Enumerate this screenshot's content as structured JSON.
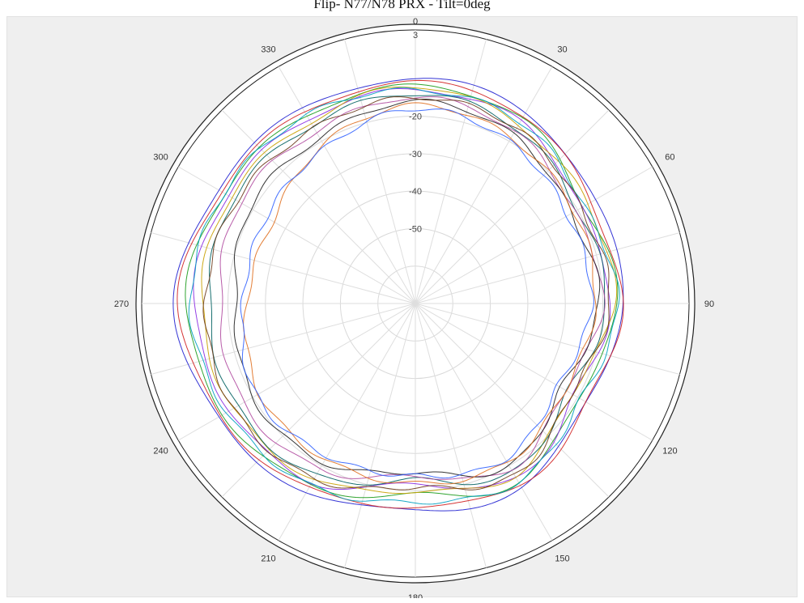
{
  "chart_data": {
    "type": "line",
    "subtype": "polar",
    "title": "Flip- N77/N78 PRX - Tilt=0deg",
    "xlabel": "",
    "ylabel": "",
    "angle_ticks": [
      "0",
      "30",
      "60",
      "90",
      "120",
      "150",
      "180",
      "210",
      "240",
      "270",
      "300",
      "330"
    ],
    "angle_tick_values": [
      0,
      30,
      60,
      90,
      120,
      150,
      180,
      210,
      240,
      270,
      300,
      330
    ],
    "radial_ticks": [
      "3",
      "-20",
      "-30",
      "-40",
      "-50"
    ],
    "radial_tick_values": [
      3,
      -20,
      -30,
      -40,
      -50
    ],
    "rlim": [
      -70,
      3
    ],
    "grid": true,
    "legend": "none",
    "colors": [
      "#1f1fd0",
      "#d02020",
      "#1a9a1a",
      "#8a2be2",
      "#c8a000",
      "#006060",
      "#b04aa0",
      "#202020",
      "#e07020",
      "#00a0c0",
      "#6b3a1a",
      "#3060ff"
    ],
    "series": [
      {
        "theta": [
          0,
          30,
          60,
          90,
          120,
          150,
          180,
          210,
          240,
          270,
          300,
          330
        ],
        "r": [
          -10,
          -11,
          -15,
          -14,
          -18,
          -13,
          -15,
          -12,
          -9,
          -6,
          -9,
          -10
        ]
      },
      {
        "theta": [
          0,
          30,
          60,
          90,
          120,
          150,
          180,
          210,
          240,
          270,
          300,
          330
        ],
        "r": [
          -11,
          -12,
          -16,
          -15,
          -17,
          -14,
          -16,
          -13,
          -10,
          -7,
          -10,
          -11
        ]
      },
      {
        "theta": [
          0,
          30,
          60,
          90,
          120,
          150,
          180,
          210,
          240,
          270,
          300,
          330
        ],
        "r": [
          -12,
          -13,
          -18,
          -16,
          -20,
          -15,
          -19,
          -14,
          -11,
          -9,
          -11,
          -12
        ]
      },
      {
        "theta": [
          0,
          30,
          60,
          90,
          120,
          150,
          180,
          210,
          240,
          270,
          300,
          330
        ],
        "r": [
          -13,
          -14,
          -19,
          -18,
          -21,
          -16,
          -22,
          -15,
          -13,
          -11,
          -12,
          -13
        ]
      },
      {
        "theta": [
          0,
          30,
          60,
          90,
          120,
          150,
          180,
          210,
          240,
          270,
          300,
          330
        ],
        "r": [
          -12,
          -15,
          -17,
          -17,
          -22,
          -17,
          -20,
          -16,
          -14,
          -13,
          -13,
          -14
        ]
      },
      {
        "theta": [
          0,
          30,
          60,
          90,
          120,
          150,
          180,
          210,
          240,
          270,
          300,
          330
        ],
        "r": [
          -14,
          -16,
          -20,
          -19,
          -23,
          -18,
          -23,
          -17,
          -15,
          -15,
          -14,
          -15
        ]
      },
      {
        "theta": [
          0,
          30,
          60,
          90,
          120,
          150,
          180,
          210,
          240,
          270,
          300,
          330
        ],
        "r": [
          -15,
          -17,
          -21,
          -20,
          -24,
          -19,
          -24,
          -19,
          -17,
          -18,
          -16,
          -17
        ]
      },
      {
        "theta": [
          0,
          30,
          60,
          90,
          120,
          150,
          180,
          210,
          240,
          270,
          300,
          330
        ],
        "r": [
          -16,
          -18,
          -22,
          -21,
          -25,
          -20,
          -25,
          -21,
          -20,
          -22,
          -19,
          -19
        ]
      },
      {
        "theta": [
          0,
          30,
          60,
          90,
          120,
          150,
          180,
          210,
          240,
          270,
          300,
          330
        ],
        "r": [
          -17,
          -19,
          -21,
          -22,
          -24,
          -21,
          -22,
          -22,
          -22,
          -25,
          -26,
          -21
        ]
      },
      {
        "theta": [
          0,
          30,
          60,
          90,
          120,
          150,
          180,
          210,
          240,
          270,
          300,
          330
        ],
        "r": [
          -13,
          -14,
          -18,
          -16,
          -19,
          -15,
          -17,
          -14,
          -12,
          -10,
          -11,
          -12
        ]
      },
      {
        "theta": [
          0,
          30,
          60,
          90,
          120,
          150,
          180,
          210,
          240,
          270,
          300,
          330
        ],
        "r": [
          -15,
          -16,
          -19,
          -18,
          -22,
          -17,
          -21,
          -16,
          -14,
          -14,
          -15,
          -16
        ]
      },
      {
        "theta": [
          0,
          30,
          60,
          90,
          120,
          150,
          180,
          210,
          240,
          270,
          300,
          330
        ],
        "r": [
          -18,
          -20,
          -23,
          -23,
          -26,
          -22,
          -24,
          -23,
          -21,
          -24,
          -24,
          -22
        ]
      }
    ]
  }
}
